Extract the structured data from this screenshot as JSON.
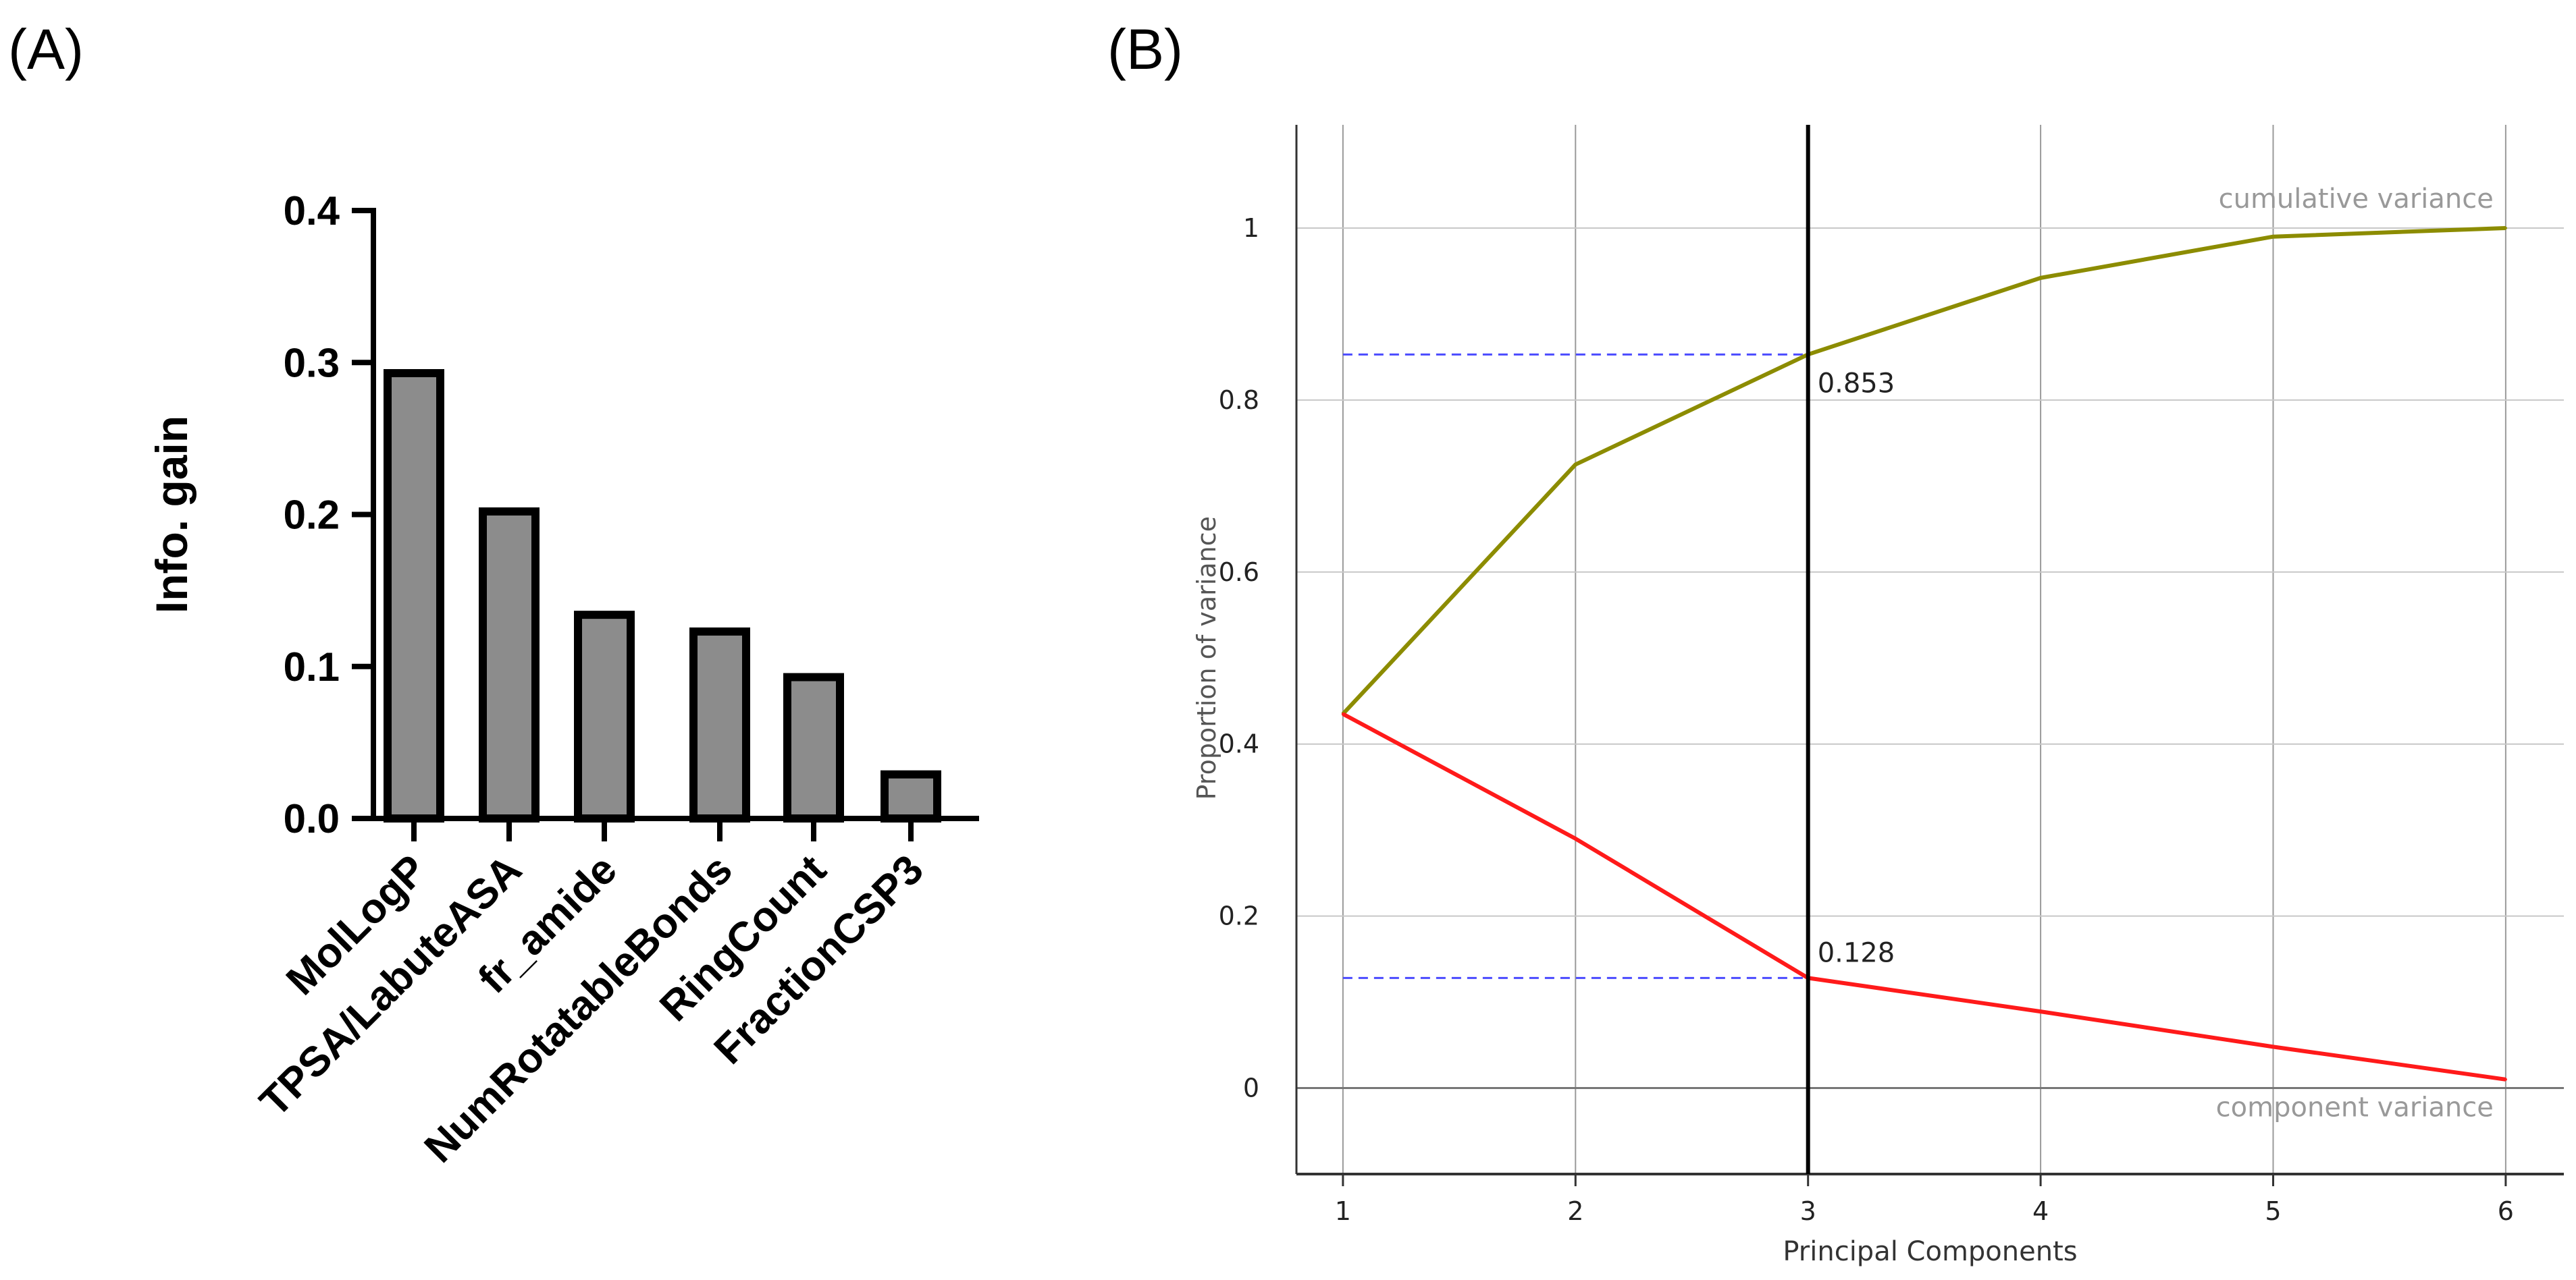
{
  "panels": {
    "a_label": "(A)",
    "b_label": "(B)"
  },
  "chart_data": [
    {
      "type": "bar",
      "panel": "(A)",
      "categories": [
        "MolLogP",
        "TPSA/LabuteASA",
        "fr_amide",
        "NumRotatableBonds",
        "RingCount",
        "FractionCSP3"
      ],
      "values": [
        0.293,
        0.202,
        0.134,
        0.123,
        0.093,
        0.029
      ],
      "ylabel": "Info. gain",
      "ylim": [
        0,
        0.4
      ],
      "yticks": [
        "0.0",
        "0.1",
        "0.2",
        "0.3",
        "0.4"
      ],
      "colors": {
        "bar_fill": "#8c8c8c",
        "bar_stroke": "#000000"
      }
    },
    {
      "type": "line",
      "panel": "(B)",
      "x": [
        1,
        2,
        3,
        4,
        5,
        6
      ],
      "xticks": [
        "1",
        "2",
        "3",
        "4",
        "5",
        "6"
      ],
      "yticks": [
        "0",
        "0.2",
        "0.4",
        "0.6",
        "0.8",
        "1"
      ],
      "series": [
        {
          "name": "cumulative variance",
          "values": [
            0.435,
            0.725,
            0.853,
            0.942,
            0.99,
            1.0
          ],
          "color": "#8c8c00"
        },
        {
          "name": "component variance",
          "values": [
            0.435,
            0.29,
            0.128,
            0.089,
            0.048,
            0.01
          ],
          "color": "#ff1a1a"
        }
      ],
      "xlabel": "Principal Components",
      "ylabel": "Proportion of variance",
      "xlim": [
        0.8,
        6.25
      ],
      "ylim": [
        -0.1,
        1.12
      ],
      "grid": true,
      "cutoff_x": 3,
      "annotations": [
        {
          "text": "0.853",
          "x": 3,
          "y": 0.853
        },
        {
          "text": "0.128",
          "x": 3,
          "y": 0.128
        }
      ],
      "reference_line_color": "#4b4bff"
    }
  ]
}
